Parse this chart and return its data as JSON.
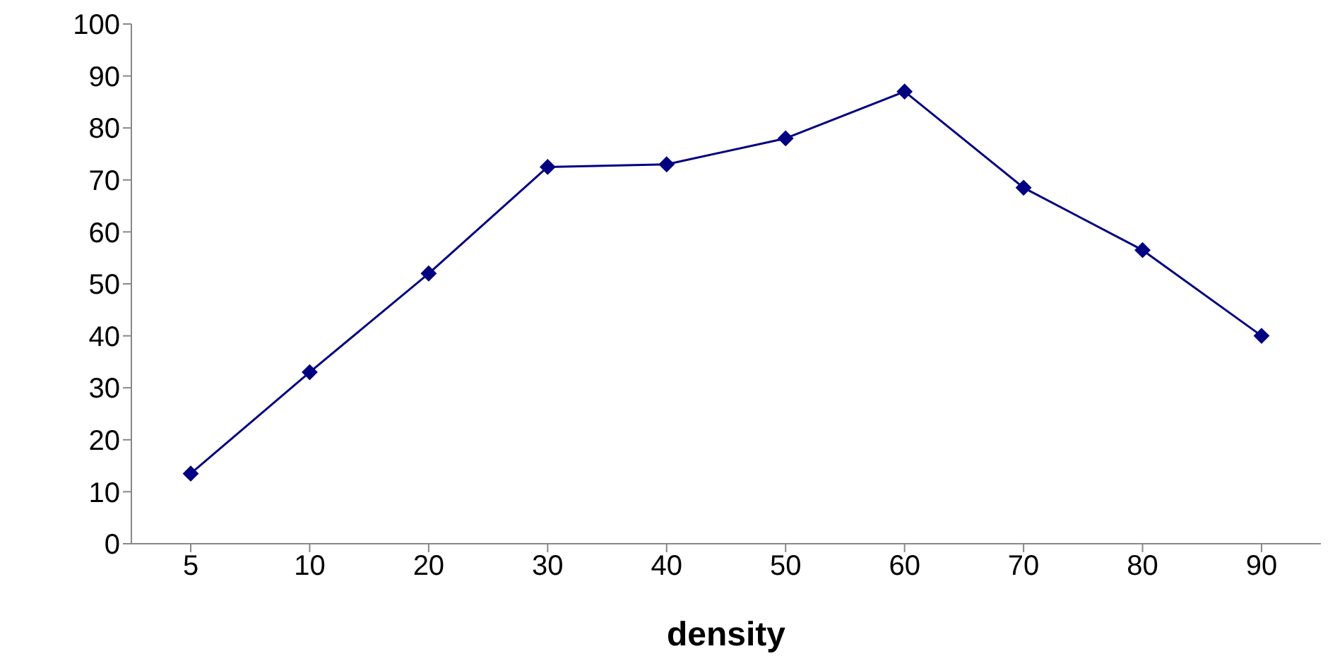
{
  "chart_data": {
    "type": "line",
    "xlabel": "density",
    "categories": [
      "5",
      "10",
      "20",
      "30",
      "40",
      "50",
      "60",
      "70",
      "80",
      "90"
    ],
    "series": [
      {
        "color": "#000080",
        "values": [
          13.5,
          33,
          52,
          72.5,
          73,
          78,
          87,
          68.5,
          56.5,
          40
        ]
      }
    ],
    "ylim": [
      0,
      100
    ],
    "yticks": [
      0,
      10,
      20,
      30,
      40,
      50,
      60,
      70,
      80,
      90,
      100
    ],
    "grid": false,
    "legend": false,
    "marker": "diamond",
    "line_style": "solid"
  }
}
